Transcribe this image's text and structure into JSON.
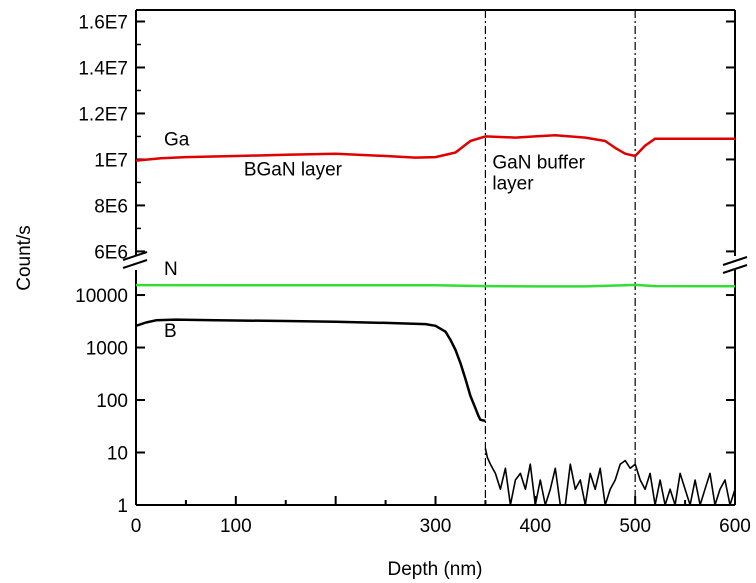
{
  "chart_data": {
    "type": "line",
    "xlabel": "Depth (nm)",
    "ylabel": "Count/s",
    "xlim": [
      0,
      600
    ],
    "x_ticks": [
      0,
      100,
      300,
      400,
      500,
      600
    ],
    "upper_panel": {
      "scale": "linear",
      "ylim": [
        5800000,
        16500000
      ],
      "tick_values": [
        6000000,
        8000000,
        10000000,
        12000000,
        14000000,
        16000000
      ],
      "tick_labels": [
        "6E6",
        "8E6",
        "1E7",
        "1.2E7",
        "1.4E7",
        "1.6E7"
      ]
    },
    "lower_panel": {
      "scale": "log",
      "ylim": [
        1,
        30000
      ],
      "tick_values": [
        1,
        10,
        100,
        1000,
        10000
      ],
      "tick_labels": [
        "1",
        "10",
        "100",
        "1000",
        "10000"
      ]
    },
    "series": [
      {
        "name": "Ga",
        "panel": "upper",
        "color": "#e00000",
        "x": [
          0,
          25,
          50,
          100,
          150,
          200,
          250,
          280,
          300,
          320,
          335,
          350,
          380,
          400,
          420,
          450,
          470,
          480,
          490,
          500,
          510,
          520,
          550,
          600
        ],
        "y": [
          9950000,
          10050000,
          10100000,
          10150000,
          10200000,
          10250000,
          10150000,
          10080000,
          10100000,
          10300000,
          10800000,
          11000000,
          10950000,
          11000000,
          11050000,
          10950000,
          10800000,
          10500000,
          10250000,
          10150000,
          10600000,
          10900000,
          10900000,
          10900000
        ]
      },
      {
        "name": "N",
        "panel": "lower",
        "color": "#33dd33",
        "x": [
          0,
          100,
          200,
          300,
          350,
          400,
          450,
          490,
          500,
          520,
          600
        ],
        "y": [
          15500,
          15400,
          15400,
          15300,
          14800,
          14600,
          14600,
          15400,
          15600,
          14800,
          14700
        ]
      },
      {
        "name": "B",
        "panel": "lower",
        "color": "#000000",
        "x": [
          0,
          10,
          20,
          40,
          80,
          150,
          200,
          250,
          290,
          300,
          310,
          315,
          320,
          325,
          330,
          335,
          340,
          343,
          345,
          350
        ],
        "y": [
          2600,
          3000,
          3300,
          3400,
          3300,
          3200,
          3100,
          2950,
          2800,
          2600,
          2000,
          1400,
          900,
          500,
          250,
          120,
          70,
          50,
          42,
          40
        ]
      },
      {
        "name": "B-noise",
        "panel": "lower",
        "color": "#000000",
        "x": [
          350,
          352,
          355,
          360,
          365,
          370,
          375,
          380,
          385,
          390,
          395,
          400,
          405,
          410,
          415,
          420,
          425,
          430,
          435,
          440,
          445,
          450,
          455,
          460,
          465,
          470,
          475,
          480,
          485,
          490,
          495,
          500,
          505,
          510,
          515,
          520,
          525,
          530,
          535,
          540,
          545,
          550,
          555,
          560,
          565,
          570,
          575,
          580,
          585,
          590,
          595,
          600
        ],
        "y": [
          12,
          8,
          6,
          4,
          2,
          5,
          1,
          3,
          4,
          2,
          6,
          1,
          3,
          1,
          2,
          5,
          1,
          1,
          6,
          2,
          3,
          1,
          4,
          2,
          5,
          1,
          2,
          3,
          6,
          7,
          5,
          6,
          3,
          2,
          4,
          1,
          3,
          1,
          2,
          1,
          4,
          2,
          1,
          3,
          1,
          2,
          4,
          1,
          2,
          3,
          1,
          2
        ]
      }
    ],
    "vertical_lines": [
      350,
      500
    ],
    "series_labels": [
      {
        "text": "Ga",
        "panel": "upper",
        "x": 28,
        "y": 10600000
      },
      {
        "text": "N",
        "panel": "lower",
        "x": 28,
        "y": 24000
      },
      {
        "text": "B",
        "panel": "lower",
        "x": 28,
        "y": 1600
      }
    ],
    "annotations": [
      {
        "text": "BGaN layer",
        "panel": "upper",
        "x": 108,
        "y": 9300000
      },
      {
        "text": "GaN buffer",
        "panel": "upper",
        "x": 357,
        "y": 9600000
      },
      {
        "text": "layer",
        "panel": "upper",
        "x": 357,
        "y": 8700000
      }
    ],
    "axis_break": true,
    "grid": false
  }
}
